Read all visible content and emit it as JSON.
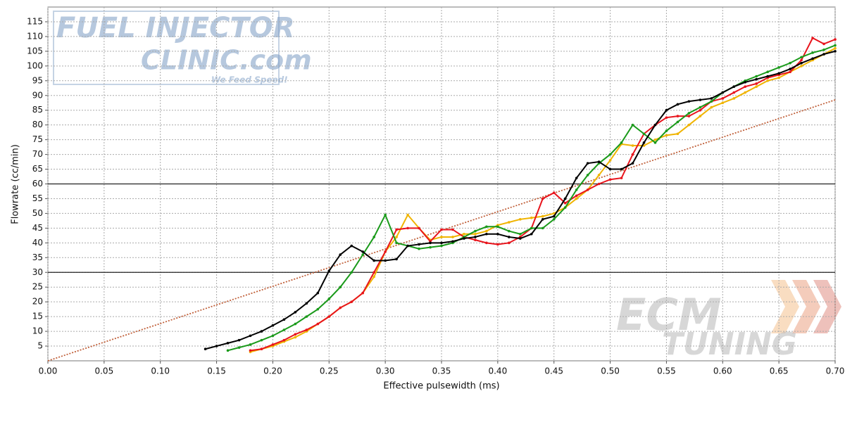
{
  "chart_data": {
    "type": "line",
    "xlabel": "Effective pulsewidth (ms)",
    "ylabel": "Flowrate (cc/min)",
    "watermarks": [
      "FUEL INJECTOR",
      "CLINIC.com",
      "We Feed Speed!",
      "ECM",
      "TUNING"
    ],
    "xlim": [
      0,
      0.7
    ],
    "ylim": [
      0,
      120
    ],
    "xticks": [
      {
        "value": 0,
        "label": "0.00"
      },
      0.05,
      {
        "value": 0.1,
        "label": "0.10"
      },
      0.15,
      {
        "value": 0.2,
        "label": "0.20"
      },
      0.25,
      {
        "value": 0.3,
        "label": "0.30"
      },
      0.35,
      {
        "value": 0.4,
        "label": "0.40"
      },
      0.45,
      {
        "value": 0.5,
        "label": "0.50"
      },
      0.55,
      {
        "value": 0.6,
        "label": "0.60"
      },
      0.65,
      {
        "value": 0.7,
        "label": "0.70"
      }
    ],
    "yticks": [
      5,
      10,
      15,
      20,
      25,
      30,
      35,
      40,
      45,
      50,
      55,
      60,
      65,
      70,
      75,
      80,
      85,
      90,
      95,
      100,
      105,
      110,
      115
    ],
    "grid": true,
    "reference_lines": [
      30,
      60
    ],
    "series": [
      {
        "color": "#c0603a",
        "dotted": true,
        "markers": false,
        "x": [
          0,
          0.7
        ],
        "values": [
          0,
          88.5
        ]
      },
      {
        "color": "#f0b400",
        "markers": true,
        "x": [
          0.18,
          0.19,
          0.2,
          0.21,
          0.22,
          0.23,
          0.24,
          0.25,
          0.26,
          0.27,
          0.28,
          0.29,
          0.3,
          0.31,
          0.32,
          0.33,
          0.34,
          0.35,
          0.36,
          0.37,
          0.38,
          0.39,
          0.4,
          0.41,
          0.42,
          0.43,
          0.44,
          0.45,
          0.46,
          0.47,
          0.48,
          0.49,
          0.5,
          0.51,
          0.52,
          0.53,
          0.54,
          0.55,
          0.56,
          0.57,
          0.58,
          0.59,
          0.6,
          0.61,
          0.62,
          0.63,
          0.64,
          0.65,
          0.66,
          0.67,
          0.68,
          0.69,
          0.7
        ],
        "values": [
          3,
          4,
          5,
          6.5,
          8,
          10,
          12.5,
          15,
          18,
          20,
          23,
          28.5,
          37,
          42,
          49.5,
          45,
          41,
          42,
          42,
          43,
          43,
          44,
          46,
          47,
          48,
          48.5,
          49,
          50,
          52,
          55,
          58,
          63,
          68,
          73.5,
          73,
          73,
          75,
          76.5,
          77,
          80,
          83,
          86,
          87.5,
          89,
          91,
          93,
          95,
          96,
          98,
          100,
          102,
          104,
          106
        ]
      },
      {
        "color": "#e8141c",
        "markers": true,
        "x": [
          0.18,
          0.19,
          0.2,
          0.21,
          0.22,
          0.23,
          0.24,
          0.25,
          0.26,
          0.27,
          0.28,
          0.29,
          0.3,
          0.31,
          0.32,
          0.33,
          0.34,
          0.35,
          0.36,
          0.37,
          0.38,
          0.39,
          0.4,
          0.41,
          0.42,
          0.43,
          0.44,
          0.45,
          0.46,
          0.47,
          0.48,
          0.49,
          0.5,
          0.51,
          0.52,
          0.53,
          0.54,
          0.55,
          0.56,
          0.57,
          0.58,
          0.59,
          0.6,
          0.61,
          0.62,
          0.63,
          0.64,
          0.65,
          0.66,
          0.67,
          0.68,
          0.69,
          0.7
        ],
        "values": [
          3.5,
          4,
          5.5,
          7,
          9,
          10.5,
          12.5,
          15,
          18,
          20,
          23,
          30,
          37,
          44.5,
          45,
          45,
          40.5,
          44.5,
          44.5,
          42,
          41,
          40,
          39.5,
          40,
          42,
          45,
          55,
          57,
          53.5,
          56,
          58,
          60,
          61.5,
          62,
          70,
          77,
          80,
          82.5,
          83,
          83,
          85,
          88,
          89,
          91,
          93,
          94,
          96,
          97,
          98,
          102,
          109.5,
          107.5,
          109
        ]
      },
      {
        "color": "#1a9a1a",
        "markers": true,
        "x": [
          0.16,
          0.17,
          0.18,
          0.19,
          0.2,
          0.21,
          0.22,
          0.23,
          0.24,
          0.25,
          0.26,
          0.27,
          0.28,
          0.29,
          0.3,
          0.31,
          0.32,
          0.33,
          0.34,
          0.35,
          0.36,
          0.37,
          0.38,
          0.39,
          0.4,
          0.41,
          0.42,
          0.43,
          0.44,
          0.45,
          0.46,
          0.47,
          0.48,
          0.49,
          0.5,
          0.51,
          0.52,
          0.53,
          0.54,
          0.55,
          0.56,
          0.57,
          0.58,
          0.59,
          0.6,
          0.61,
          0.62,
          0.63,
          0.64,
          0.65,
          0.66,
          0.67,
          0.68,
          0.69,
          0.7
        ],
        "values": [
          3.5,
          4.5,
          5.5,
          7,
          8.5,
          10.5,
          12.5,
          15,
          17.5,
          21,
          25,
          30,
          36,
          42,
          49.5,
          40,
          39,
          38,
          38.5,
          39,
          40,
          42,
          44,
          45.5,
          45.5,
          44,
          43,
          45,
          45,
          48,
          52,
          58,
          63,
          67,
          70,
          74,
          80,
          77,
          74,
          78,
          81,
          84,
          86,
          88,
          91,
          93,
          95,
          96.5,
          98,
          99.5,
          101,
          103,
          104.5,
          105.5,
          107
        ]
      },
      {
        "color": "#000000",
        "markers": true,
        "x": [
          0.14,
          0.15,
          0.16,
          0.17,
          0.18,
          0.19,
          0.2,
          0.21,
          0.22,
          0.23,
          0.24,
          0.25,
          0.26,
          0.27,
          0.28,
          0.29,
          0.3,
          0.31,
          0.32,
          0.33,
          0.34,
          0.35,
          0.36,
          0.37,
          0.38,
          0.39,
          0.4,
          0.41,
          0.42,
          0.43,
          0.44,
          0.45,
          0.46,
          0.47,
          0.48,
          0.49,
          0.5,
          0.51,
          0.52,
          0.53,
          0.54,
          0.55,
          0.56,
          0.57,
          0.58,
          0.59,
          0.6,
          0.61,
          0.62,
          0.63,
          0.64,
          0.65,
          0.66,
          0.67,
          0.68,
          0.69,
          0.7
        ],
        "values": [
          4,
          5,
          6,
          7,
          8.5,
          10,
          12,
          14,
          16.5,
          19.5,
          23,
          30.5,
          36,
          39,
          37,
          34,
          34,
          34.5,
          39,
          39.5,
          40,
          40,
          40.5,
          41.5,
          42,
          43,
          43,
          42,
          41.5,
          43,
          48,
          49,
          55,
          62,
          67,
          67.5,
          65,
          65,
          67,
          74,
          80,
          85,
          87,
          88,
          88.5,
          89,
          91,
          93,
          94.5,
          95.5,
          96.5,
          97.5,
          99,
          101,
          102.5,
          104,
          105
        ]
      }
    ]
  }
}
